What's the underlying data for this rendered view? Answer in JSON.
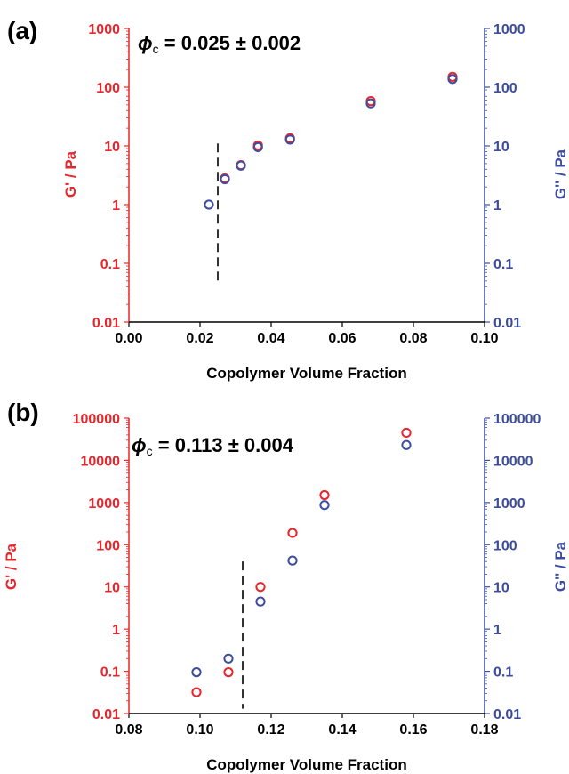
{
  "colors": {
    "gprime": "#e8262c",
    "gdouble": "#3c4da0",
    "axis": "#000000"
  },
  "chart_data": [
    {
      "type": "scatter",
      "panel_label": "(a)",
      "annotation_phi": "ϕ",
      "annotation_sub": "c",
      "annotation_value": " = 0.025 ± 0.002",
      "xlabel": "Copolymer Volume Fraction",
      "ylabel_left": "G' / Pa",
      "ylabel_right": "G'' / Pa",
      "xlim": [
        0,
        0.1
      ],
      "ylim": [
        0.01,
        1000
      ],
      "yscale": "log",
      "xticks": [
        "0.00",
        "0.02",
        "0.04",
        "0.06",
        "0.08",
        "0.10"
      ],
      "yticks": [
        "0.01",
        "0.1",
        "1",
        "10",
        "100",
        "1000"
      ],
      "critical_line": {
        "x": 0.025,
        "y_range": [
          0.045,
          11
        ]
      },
      "series": [
        {
          "name": "G'",
          "color": "#e8262c",
          "points": [
            [
              0.027,
              2.8
            ],
            [
              0.0315,
              4.7
            ],
            [
              0.0363,
              10.2
            ],
            [
              0.0453,
              13.5
            ],
            [
              0.068,
              58
            ],
            [
              0.091,
              150
            ]
          ]
        },
        {
          "name": "G''",
          "color": "#3c4da0",
          "points": [
            [
              0.0225,
              1.0
            ],
            [
              0.027,
              2.7
            ],
            [
              0.0315,
              4.6
            ],
            [
              0.0363,
              9.5
            ],
            [
              0.0453,
              12.8
            ],
            [
              0.068,
              53
            ],
            [
              0.091,
              138
            ]
          ]
        }
      ]
    },
    {
      "type": "scatter",
      "panel_label": "(b)",
      "annotation_phi": "ϕ",
      "annotation_sub": "c",
      "annotation_value": " = 0.113 ± 0.004",
      "xlabel": "Copolymer Volume Fraction",
      "ylabel_left": "G' / Pa",
      "ylabel_right": "G'' / Pa",
      "xlim": [
        0.08,
        0.18
      ],
      "ylim": [
        0.01,
        100000
      ],
      "yscale": "log",
      "xticks": [
        "0.08",
        "0.10",
        "0.12",
        "0.14",
        "0.16",
        "0.18"
      ],
      "yticks": [
        "0.01",
        "0.1",
        "1",
        "10",
        "100",
        "1000",
        "10000",
        "100000"
      ],
      "critical_line": {
        "x": 0.112,
        "y_range": [
          0.013,
          40
        ]
      },
      "series": [
        {
          "name": "G'",
          "color": "#e8262c",
          "points": [
            [
              0.099,
              0.032
            ],
            [
              0.108,
              0.095
            ],
            [
              0.117,
              10
            ],
            [
              0.126,
              190
            ],
            [
              0.135,
              1500
            ],
            [
              0.158,
              45000
            ]
          ]
        },
        {
          "name": "G''",
          "color": "#3c4da0",
          "points": [
            [
              0.099,
              0.095
            ],
            [
              0.108,
              0.2
            ],
            [
              0.117,
              4.5
            ],
            [
              0.126,
              42
            ],
            [
              0.135,
              870
            ],
            [
              0.158,
              23000
            ]
          ]
        }
      ]
    }
  ]
}
